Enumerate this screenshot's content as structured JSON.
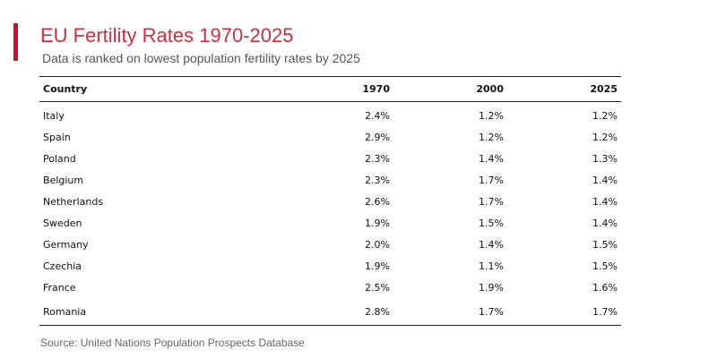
{
  "header": {
    "title": "EU Fertility Rates 1970-2025",
    "subtitle": "Data is ranked on lowest population fertility rates by 2025"
  },
  "footer": {
    "source": "Source: United Nations Population Prospects Database"
  },
  "colors": {
    "accent": "#c8102e",
    "title": "#c8313e"
  },
  "chart_data": {
    "type": "table",
    "title": "EU Fertility Rates 1970-2025",
    "subtitle": "Data is ranked on lowest population fertility rates by 2025",
    "columns": [
      "Country",
      "1970",
      "2000",
      "2025"
    ],
    "rows": [
      {
        "country": "Italy",
        "y1970": "2.4%",
        "y2000": "1.2%",
        "y2025": "1.2%"
      },
      {
        "country": "Spain",
        "y1970": "2.9%",
        "y2000": "1.2%",
        "y2025": "1.2%"
      },
      {
        "country": "Poland",
        "y1970": "2.3%",
        "y2000": "1.4%",
        "y2025": "1.3%"
      },
      {
        "country": "Belgium",
        "y1970": "2.3%",
        "y2000": "1.7%",
        "y2025": "1.4%"
      },
      {
        "country": "Netherlands",
        "y1970": "2.6%",
        "y2000": "1.7%",
        "y2025": "1.4%"
      },
      {
        "country": "Sweden",
        "y1970": "1.9%",
        "y2000": "1.5%",
        "y2025": "1.4%"
      },
      {
        "country": "Germany",
        "y1970": "2.0%",
        "y2000": "1.4%",
        "y2025": "1.5%"
      },
      {
        "country": "Czechia",
        "y1970": "1.9%",
        "y2000": "1.1%",
        "y2025": "1.5%"
      },
      {
        "country": "France",
        "y1970": "2.5%",
        "y2000": "1.9%",
        "y2025": "1.6%"
      },
      {
        "country": "Romania",
        "y1970": "2.8%",
        "y2000": "1.7%",
        "y2025": "1.7%"
      }
    ]
  }
}
